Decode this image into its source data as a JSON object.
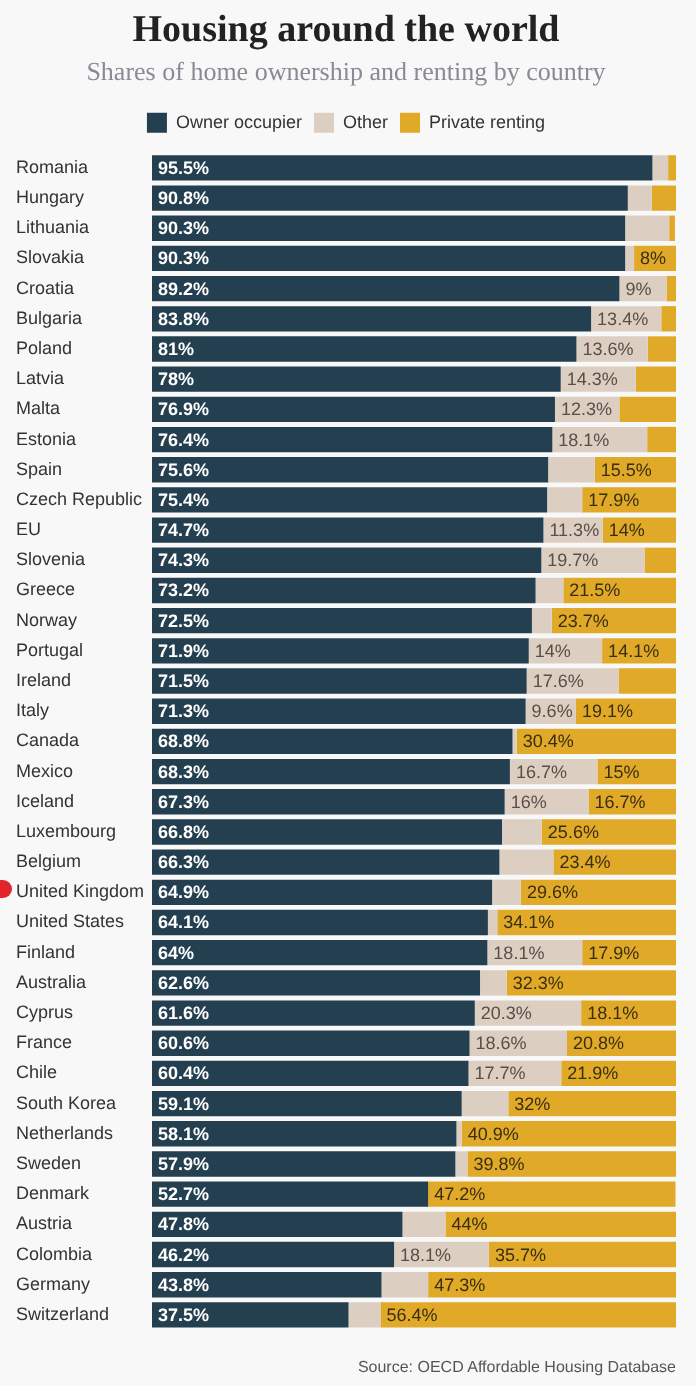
{
  "chart_data": {
    "type": "bar",
    "orientation": "horizontal",
    "stacked": true,
    "title": "Housing around the world",
    "subtitle": "Shares of home ownership and renting by country",
    "legend": "top",
    "xlim": [
      0,
      100
    ],
    "categories": [
      "Romania",
      "Hungary",
      "Lithuania",
      "Slovakia",
      "Croatia",
      "Bulgaria",
      "Poland",
      "Latvia",
      "Malta",
      "Estonia",
      "Spain",
      "Czech Republic",
      "EU",
      "Slovenia",
      "Greece",
      "Norway",
      "Portugal",
      "Ireland",
      "Italy",
      "Canada",
      "Mexico",
      "Iceland",
      "Luxembourg",
      "Belgium",
      "United Kingdom",
      "United States",
      "Finland",
      "Australia",
      "Cyprus",
      "France",
      "Chile",
      "South Korea",
      "Netherlands",
      "Sweden",
      "Denmark",
      "Austria",
      "Colombia",
      "Germany",
      "Switzerland"
    ],
    "series": [
      {
        "name": "Owner occupier",
        "color": "#243f4f",
        "values": [
          95.5,
          90.8,
          90.3,
          90.3,
          89.2,
          83.8,
          81,
          78,
          76.9,
          76.4,
          75.6,
          75.4,
          74.7,
          74.3,
          73.2,
          72.5,
          71.9,
          71.5,
          71.3,
          68.8,
          68.3,
          67.3,
          66.8,
          66.3,
          64.9,
          64.1,
          64,
          62.6,
          61.6,
          60.6,
          60.4,
          59.1,
          58.1,
          57.9,
          52.7,
          47.8,
          46.2,
          43.8,
          37.5
        ],
        "value_labels": [
          "95.5%",
          "90.8%",
          "90.3%",
          "90.3%",
          "89.2%",
          "83.8%",
          "81%",
          "78%",
          "76.9%",
          "76.4%",
          "75.6%",
          "75.4%",
          "74.7%",
          "74.3%",
          "73.2%",
          "72.5%",
          "71.9%",
          "71.5%",
          "71.3%",
          "68.8%",
          "68.3%",
          "67.3%",
          "66.8%",
          "66.3%",
          "64.9%",
          "64.1%",
          "64%",
          "62.6%",
          "61.6%",
          "60.6%",
          "60.4%",
          "59.1%",
          "58.1%",
          "57.9%",
          "52.7%",
          "47.8%",
          "46.2%",
          "43.8%",
          "37.5%"
        ]
      },
      {
        "name": "Other",
        "color": "#dccfc2",
        "values": [
          3.0,
          4.6,
          8.4,
          1.7,
          9,
          13.4,
          13.6,
          14.3,
          12.3,
          18.1,
          8.9,
          6.7,
          11.3,
          19.7,
          5.3,
          3.8,
          14,
          17.6,
          9.6,
          0.8,
          16.7,
          16,
          7.6,
          10.3,
          5.5,
          1.8,
          18.1,
          5.1,
          20.3,
          18.6,
          17.7,
          8.9,
          1.0,
          2.3,
          null,
          8.2,
          18.1,
          8.9,
          6.1
        ],
        "value_labels": [
          null,
          null,
          null,
          null,
          "9%",
          "13.4%",
          "13.6%",
          "14.3%",
          "12.3%",
          "18.1%",
          null,
          null,
          "11.3%",
          "19.7%",
          null,
          null,
          "14%",
          "17.6%",
          "9.6%",
          null,
          "16.7%",
          "16%",
          null,
          null,
          null,
          null,
          "18.1%",
          null,
          "20.3%",
          "18.6%",
          "17.7%",
          null,
          null,
          null,
          null,
          null,
          "18.1%",
          null,
          null
        ]
      },
      {
        "name": "Private renting",
        "color": "#e0a928",
        "values": [
          1.5,
          4.6,
          1.1,
          8,
          1.8,
          2.8,
          5.4,
          7.7,
          10.8,
          5.5,
          15.5,
          17.9,
          14,
          6,
          21.5,
          23.7,
          14.1,
          10.9,
          19.1,
          30.4,
          15,
          16.7,
          25.6,
          23.4,
          29.6,
          34.1,
          17.9,
          32.3,
          18.1,
          20.8,
          21.9,
          32,
          40.9,
          39.8,
          47.2,
          44,
          35.7,
          47.3,
          56.4
        ],
        "value_labels": [
          null,
          null,
          null,
          "8%",
          null,
          null,
          null,
          null,
          null,
          null,
          "15.5%",
          "17.9%",
          "14%",
          null,
          "21.5%",
          "23.7%",
          "14.1%",
          null,
          "19.1%",
          "30.4%",
          "15%",
          "16.7%",
          "25.6%",
          "23.4%",
          "29.6%",
          "34.1%",
          "17.9%",
          "32.3%",
          "18.1%",
          "20.8%",
          "21.9%",
          "32%",
          "40.9%",
          "39.8%",
          "47.2%",
          "44%",
          "35.7%",
          "47.3%",
          "56.4%"
        ]
      }
    ],
    "annotations": [
      "Source: OECD Affordable Housing Database"
    ]
  }
}
